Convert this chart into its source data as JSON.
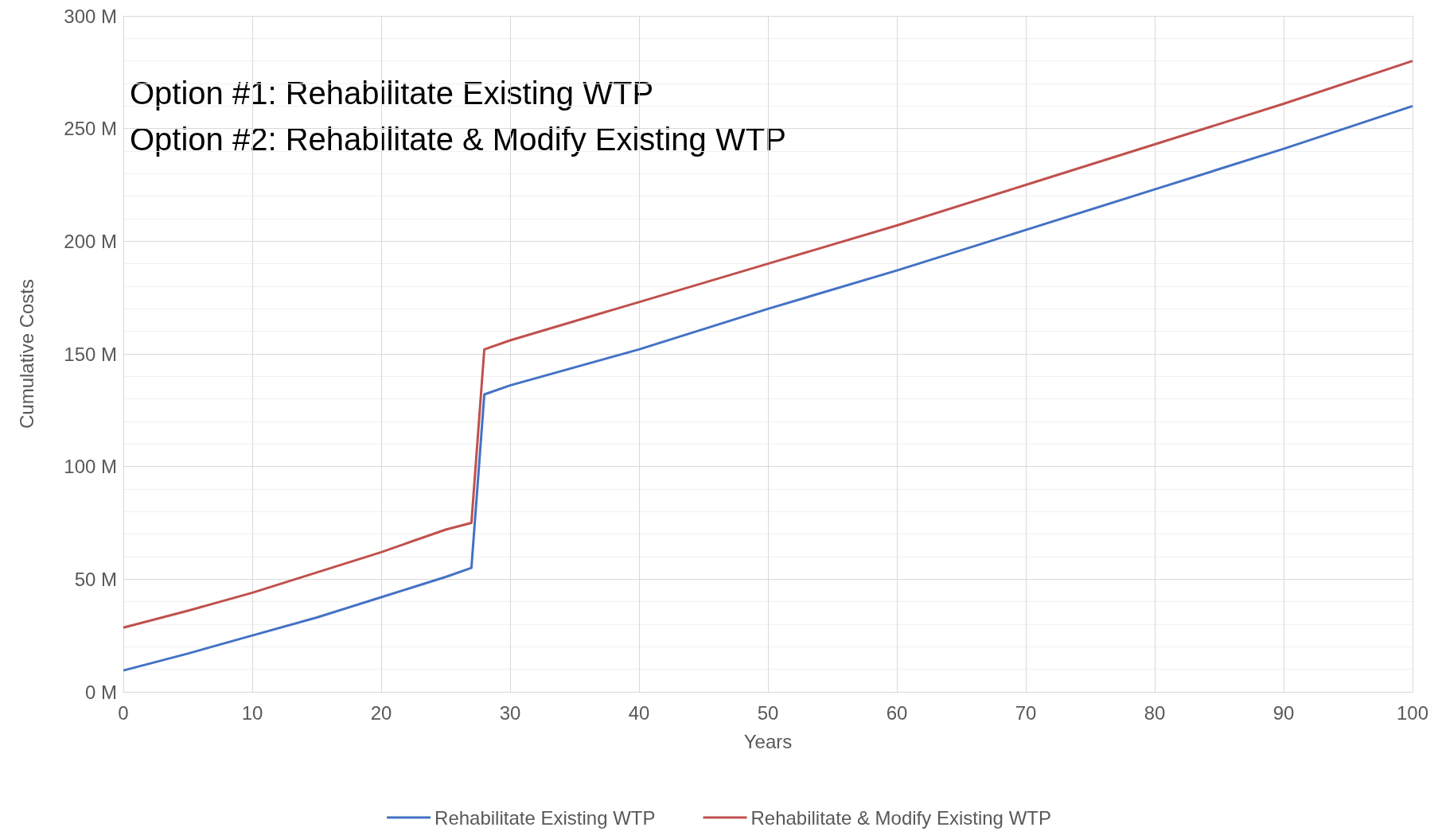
{
  "chart_data": {
    "type": "line",
    "xlabel": "Years",
    "ylabel": "Cumulative Costs",
    "annotations": [
      "Option #1: Rehabilitate Existing WTP",
      "Option #2: Rehabilitate & Modify Existing WTP"
    ],
    "x": [
      0,
      5,
      10,
      15,
      20,
      25,
      27,
      28,
      30,
      40,
      50,
      60,
      70,
      80,
      90,
      100
    ],
    "series": [
      {
        "name": "Rehabilitate Existing WTP",
        "color": "#4472c4",
        "values": [
          9.5,
          17,
          25,
          33,
          42,
          51,
          55,
          132,
          136,
          152,
          170,
          187,
          205,
          223,
          241,
          260
        ]
      },
      {
        "name": "Rehabilitate & Modify Existing WTP",
        "color": "#c0504d",
        "values": [
          28.5,
          36,
          44,
          53,
          62,
          72,
          75,
          152,
          156,
          173,
          190,
          207,
          225,
          243,
          261,
          280
        ]
      }
    ],
    "xlim": [
      0,
      100
    ],
    "xticks": [
      0,
      10,
      20,
      30,
      40,
      50,
      60,
      70,
      80,
      90,
      100
    ],
    "ylim": [
      0,
      300
    ],
    "yticks": [
      {
        "value": 0,
        "label": "0 M"
      },
      {
        "value": 50,
        "label": "50 M"
      },
      {
        "value": 100,
        "label": "100 M"
      },
      {
        "value": 150,
        "label": "150 M"
      },
      {
        "value": 200,
        "label": "200 M"
      },
      {
        "value": 250,
        "label": "250 M"
      },
      {
        "value": 300,
        "label": "300 M"
      }
    ],
    "grid": true,
    "legend": "bottom",
    "marker": "none",
    "line_style": "solid"
  }
}
